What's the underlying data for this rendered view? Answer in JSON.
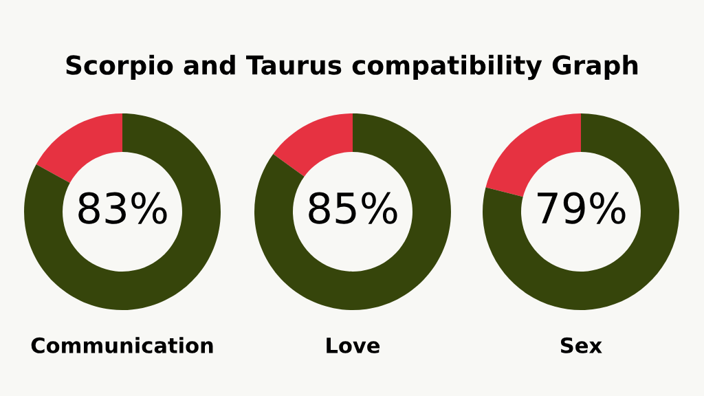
{
  "chart_data": [
    {
      "type": "donut",
      "title": "Scorpio and Taurus compatibility Graph",
      "xlabel": "Communication",
      "categories": [
        null,
        null
      ],
      "values": [
        83,
        17
      ],
      "colors": [
        "#36450b",
        "#e63241"
      ],
      "value_labels": [
        "83%",
        null
      ]
    },
    {
      "type": "donut",
      "xlabel": "Love",
      "categories": [
        null,
        null
      ],
      "values": [
        85,
        15
      ],
      "colors": [
        "#36450b",
        "#e63241"
      ],
      "value_labels": [
        "85%",
        null
      ]
    },
    {
      "type": "donut",
      "xlabel": "Sex",
      "categories": [
        null,
        null
      ],
      "values": [
        79,
        21
      ],
      "colors": [
        "#36450b",
        "#e63241"
      ],
      "value_labels": [
        "79%",
        null
      ]
    }
  ]
}
